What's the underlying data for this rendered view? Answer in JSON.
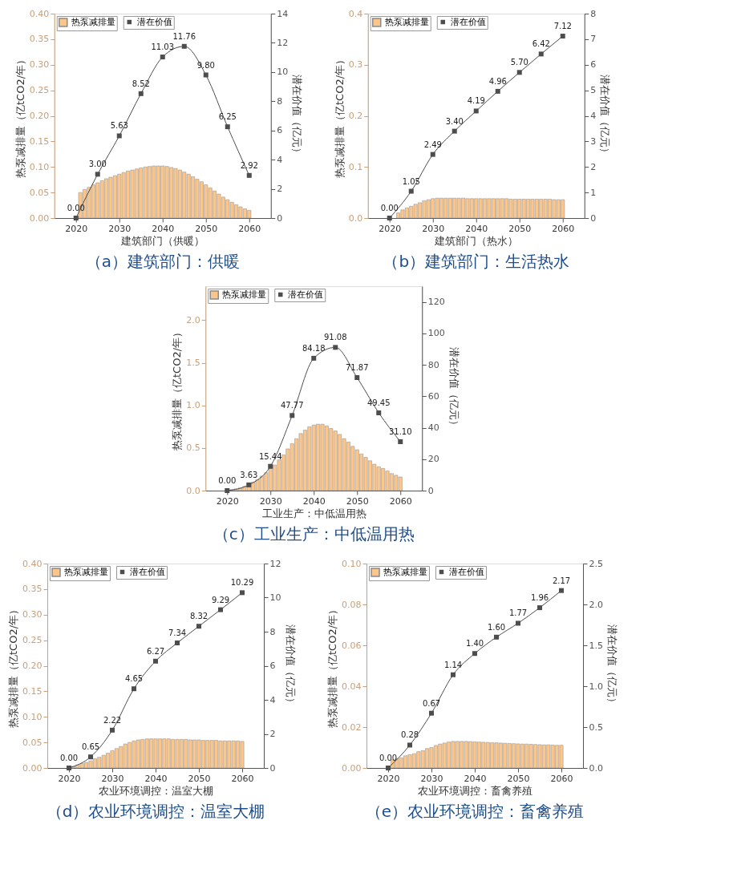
{
  "chart_data": [
    {
      "type": "bar",
      "title": "（a）建筑部门：供暖",
      "xlabel": "建筑部门（供暖）",
      "ylabel": "热泵减排量（亿tCO2/年）",
      "y2label": "潜在价值（亿元）",
      "legend": "top left",
      "xlim": [
        2015,
        2065
      ],
      "xticks": [
        2020,
        2030,
        2040,
        2050,
        2060
      ],
      "ylim": [
        0,
        0.4
      ],
      "yticks": [
        {
          "value": 0,
          "label": "0.00"
        },
        {
          "value": 0.05,
          "label": "0.05"
        },
        {
          "value": 0.1,
          "label": "0.10"
        },
        {
          "value": 0.15,
          "label": "0.15"
        },
        {
          "value": 0.2,
          "label": "0.20"
        },
        {
          "value": 0.25,
          "label": "0.25"
        },
        {
          "value": 0.3,
          "label": "0.30"
        },
        {
          "value": 0.35,
          "label": "0.35"
        },
        {
          "value": 0.4,
          "label": "0.40"
        }
      ],
      "y2lim": [
        0,
        14
      ],
      "y2ticks": [
        0,
        2,
        4,
        6,
        8,
        10,
        12,
        14
      ],
      "series": [
        {
          "name": "热泵减排量",
          "type": "bar",
          "color": "#fcc68a",
          "x": [
            2021,
            2022,
            2023,
            2024,
            2025,
            2026,
            2027,
            2028,
            2029,
            2030,
            2031,
            2032,
            2033,
            2034,
            2035,
            2036,
            2037,
            2038,
            2039,
            2040,
            2041,
            2042,
            2043,
            2044,
            2045,
            2046,
            2047,
            2048,
            2049,
            2050,
            2051,
            2052,
            2053,
            2054,
            2055,
            2056,
            2057,
            2058,
            2059,
            2060
          ],
          "values": [
            0.05,
            0.056,
            0.06,
            0.065,
            0.069,
            0.073,
            0.077,
            0.08,
            0.083,
            0.086,
            0.089,
            0.092,
            0.094,
            0.096,
            0.098,
            0.1,
            0.101,
            0.102,
            0.102,
            0.102,
            0.101,
            0.099,
            0.097,
            0.094,
            0.09,
            0.086,
            0.081,
            0.076,
            0.071,
            0.065,
            0.059,
            0.053,
            0.047,
            0.041,
            0.036,
            0.031,
            0.026,
            0.022,
            0.018,
            0.015
          ]
        },
        {
          "name": "潜在价值",
          "type": "line",
          "axis": "y2",
          "marker": "square",
          "color": "#4d4d4d",
          "x": [
            2020,
            2025,
            2030,
            2035,
            2040,
            2045,
            2050,
            2055,
            2060
          ],
          "values": [
            0,
            3.0,
            5.63,
            8.52,
            11.03,
            11.76,
            9.8,
            6.25,
            2.92
          ],
          "value_labels": [
            "0.00",
            "3.00",
            "5.63",
            "8.52",
            "11.03",
            "11.76",
            "9.80",
            "6.25",
            "2.92"
          ]
        }
      ]
    },
    {
      "type": "bar",
      "title": "（b）建筑部门：生活热水",
      "xlabel": "建筑部门（热水）",
      "ylabel": "热泵减排量（亿tCO2/年）",
      "y2label": "潜在价值（亿元）",
      "legend": "top left",
      "xlim": [
        2015,
        2065
      ],
      "xticks": [
        2020,
        2030,
        2040,
        2050,
        2060
      ],
      "ylim": [
        0,
        0.4
      ],
      "yticks": [
        {
          "value": 0,
          "label": "0.0"
        },
        {
          "value": 0.1,
          "label": "0.1"
        },
        {
          "value": 0.2,
          "label": "0.2"
        },
        {
          "value": 0.3,
          "label": "0.3"
        },
        {
          "value": 0.4,
          "label": "0.4"
        }
      ],
      "y2lim": [
        0,
        8
      ],
      "y2ticks": [
        0,
        1,
        2,
        3,
        4,
        5,
        6,
        7,
        8
      ],
      "series": [
        {
          "name": "热泵减排量",
          "type": "bar",
          "color": "#fcc68a",
          "x": [
            2022,
            2023,
            2024,
            2025,
            2026,
            2027,
            2028,
            2029,
            2030,
            2031,
            2032,
            2033,
            2034,
            2035,
            2036,
            2037,
            2038,
            2039,
            2040,
            2041,
            2042,
            2043,
            2044,
            2045,
            2046,
            2047,
            2048,
            2049,
            2050,
            2051,
            2052,
            2053,
            2054,
            2055,
            2056,
            2057,
            2058,
            2059,
            2060
          ],
          "values": [
            0.01,
            0.016,
            0.02,
            0.023,
            0.027,
            0.03,
            0.034,
            0.036,
            0.038,
            0.039,
            0.039,
            0.039,
            0.039,
            0.039,
            0.039,
            0.039,
            0.038,
            0.038,
            0.038,
            0.038,
            0.038,
            0.038,
            0.038,
            0.038,
            0.038,
            0.038,
            0.037,
            0.037,
            0.037,
            0.037,
            0.037,
            0.037,
            0.037,
            0.037,
            0.037,
            0.037,
            0.036,
            0.036,
            0.036
          ]
        },
        {
          "name": "潜在价值",
          "type": "line",
          "axis": "y2",
          "marker": "square",
          "color": "#4d4d4d",
          "x": [
            2020,
            2025,
            2030,
            2035,
            2040,
            2045,
            2050,
            2055,
            2060
          ],
          "values": [
            0,
            1.05,
            2.49,
            3.4,
            4.19,
            4.96,
            5.7,
            6.42,
            7.12
          ],
          "value_labels": [
            "0.00",
            "1.05",
            "2.49",
            "3.40",
            "4.19",
            "4.96",
            "5.70",
            "6.42",
            "7.12"
          ]
        }
      ]
    },
    {
      "type": "bar",
      "title": "（c）工业生产：中低温用热",
      "xlabel": "工业生产：中低温用热",
      "ylabel": "热泵减排量（亿tCO2/年）",
      "y2label": "潜在价值（亿元）",
      "legend": "top left",
      "xlim": [
        2015,
        2065
      ],
      "xticks": [
        2020,
        2030,
        2040,
        2050,
        2060
      ],
      "ylim": [
        0,
        2.4
      ],
      "yticks": [
        {
          "value": 0,
          "label": "0.0"
        },
        {
          "value": 0.5,
          "label": "0.5"
        },
        {
          "value": 1,
          "label": "1.0"
        },
        {
          "value": 1.5,
          "label": "1.5"
        },
        {
          "value": 2,
          "label": "2.0"
        }
      ],
      "y2lim": [
        0,
        130
      ],
      "y2ticks": [
        0,
        20,
        40,
        60,
        80,
        100,
        120
      ],
      "series": [
        {
          "name": "热泵减排量",
          "type": "bar",
          "color": "#fcc68a",
          "x": [
            2021,
            2022,
            2023,
            2024,
            2025,
            2026,
            2027,
            2028,
            2029,
            2030,
            2031,
            2032,
            2033,
            2034,
            2035,
            2036,
            2037,
            2038,
            2039,
            2040,
            2041,
            2042,
            2043,
            2044,
            2045,
            2046,
            2047,
            2048,
            2049,
            2050,
            2051,
            2052,
            2053,
            2054,
            2055,
            2056,
            2057,
            2058,
            2059,
            2060
          ],
          "values": [
            0.01,
            0.02,
            0.03,
            0.05,
            0.07,
            0.1,
            0.13,
            0.17,
            0.21,
            0.26,
            0.3,
            0.36,
            0.42,
            0.49,
            0.55,
            0.61,
            0.67,
            0.71,
            0.75,
            0.77,
            0.78,
            0.78,
            0.76,
            0.73,
            0.7,
            0.66,
            0.61,
            0.57,
            0.52,
            0.48,
            0.43,
            0.39,
            0.35,
            0.31,
            0.28,
            0.26,
            0.23,
            0.2,
            0.18,
            0.16
          ]
        },
        {
          "name": "潜在价值",
          "type": "line",
          "axis": "y2",
          "marker": "square",
          "color": "#4d4d4d",
          "x": [
            2020,
            2025,
            2030,
            2035,
            2040,
            2045,
            2050,
            2055,
            2060
          ],
          "values": [
            0,
            3.63,
            15.44,
            47.77,
            84.18,
            91.08,
            71.87,
            49.45,
            31.1
          ],
          "value_labels": [
            "0.00",
            "3.63",
            "15.44",
            "47.77",
            "84.18",
            "91.08",
            "71.87",
            "49.45",
            "31.10"
          ]
        }
      ]
    },
    {
      "type": "bar",
      "title": "（d）农业环境调控：温室大棚",
      "xlabel": "农业环境调控：温室大棚",
      "ylabel": "热泵减排量（亿tCO2/年）",
      "y2label": "潜在价值（亿元）",
      "legend": "top left",
      "xlim": [
        2015,
        2065
      ],
      "xticks": [
        2020,
        2030,
        2040,
        2050,
        2060
      ],
      "ylim": [
        0,
        0.4
      ],
      "yticks": [
        {
          "value": 0,
          "label": "0.00"
        },
        {
          "value": 0.05,
          "label": "0.05"
        },
        {
          "value": 0.1,
          "label": "0.10"
        },
        {
          "value": 0.15,
          "label": "0.15"
        },
        {
          "value": 0.2,
          "label": "0.20"
        },
        {
          "value": 0.25,
          "label": "0.25"
        },
        {
          "value": 0.3,
          "label": "0.30"
        },
        {
          "value": 0.35,
          "label": "0.35"
        },
        {
          "value": 0.4,
          "label": "0.40"
        }
      ],
      "y2lim": [
        0,
        12
      ],
      "y2ticks": [
        0,
        2,
        4,
        6,
        8,
        10,
        12
      ],
      "series": [
        {
          "name": "热泵减排量",
          "type": "bar",
          "color": "#fcc68a",
          "x": [
            2021,
            2022,
            2023,
            2024,
            2025,
            2026,
            2027,
            2028,
            2029,
            2030,
            2031,
            2032,
            2033,
            2034,
            2035,
            2036,
            2037,
            2038,
            2039,
            2040,
            2041,
            2042,
            2043,
            2044,
            2045,
            2046,
            2047,
            2048,
            2049,
            2050,
            2051,
            2052,
            2053,
            2054,
            2055,
            2056,
            2057,
            2058,
            2059,
            2060
          ],
          "values": [
            0.003,
            0.006,
            0.009,
            0.011,
            0.014,
            0.018,
            0.021,
            0.025,
            0.029,
            0.034,
            0.038,
            0.042,
            0.047,
            0.05,
            0.053,
            0.055,
            0.056,
            0.057,
            0.057,
            0.057,
            0.057,
            0.057,
            0.057,
            0.056,
            0.056,
            0.056,
            0.056,
            0.055,
            0.055,
            0.055,
            0.054,
            0.054,
            0.054,
            0.054,
            0.053,
            0.053,
            0.053,
            0.053,
            0.053,
            0.052
          ]
        },
        {
          "name": "潜在价值",
          "type": "line",
          "axis": "y2",
          "marker": "square",
          "color": "#4d4d4d",
          "x": [
            2020,
            2025,
            2030,
            2035,
            2040,
            2045,
            2050,
            2055,
            2060
          ],
          "values": [
            0,
            0.65,
            2.22,
            4.65,
            6.27,
            7.34,
            8.32,
            9.29,
            10.29
          ],
          "value_labels": [
            "0.00",
            "0.65",
            "2.22",
            "4.65",
            "6.27",
            "7.34",
            "8.32",
            "9.29",
            "10.29"
          ]
        }
      ]
    },
    {
      "type": "bar",
      "title": "（e）农业环境调控：畜禽养殖",
      "xlabel": "农业环境调控：畜禽养殖",
      "ylabel": "热泵减排量（亿tCO2/年）",
      "y2label": "潜在价值（亿元）",
      "legend": "top left",
      "xlim": [
        2015,
        2065
      ],
      "xticks": [
        2020,
        2030,
        2040,
        2050,
        2060
      ],
      "ylim": [
        0,
        0.1
      ],
      "yticks": [
        {
          "value": 0,
          "label": "0.00"
        },
        {
          "value": 0.02,
          "label": "0.02"
        },
        {
          "value": 0.04,
          "label": "0.04"
        },
        {
          "value": 0.06,
          "label": "0.06"
        },
        {
          "value": 0.08,
          "label": "0.08"
        },
        {
          "value": 0.1,
          "label": "0.10"
        }
      ],
      "y2lim": [
        0,
        2.5
      ],
      "y2ticks": [
        {
          "value": 0,
          "label": "0.0"
        },
        {
          "value": 0.5,
          "label": "0.5"
        },
        {
          "value": 1,
          "label": "1.0"
        },
        {
          "value": 1.5,
          "label": "1.5"
        },
        {
          "value": 2,
          "label": "2.0"
        },
        {
          "value": 2.5,
          "label": "2.5"
        }
      ],
      "series": [
        {
          "name": "热泵减排量",
          "type": "bar",
          "color": "#fcc68a",
          "x": [
            2021,
            2022,
            2023,
            2024,
            2025,
            2026,
            2027,
            2028,
            2029,
            2030,
            2031,
            2032,
            2033,
            2034,
            2035,
            2036,
            2037,
            2038,
            2039,
            2040,
            2041,
            2042,
            2043,
            2044,
            2045,
            2046,
            2047,
            2048,
            2049,
            2050,
            2051,
            2052,
            2053,
            2054,
            2055,
            2056,
            2057,
            2058,
            2059,
            2060
          ],
          "values": [
            0.004,
            0.0045,
            0.005,
            0.006,
            0.0065,
            0.007,
            0.008,
            0.0085,
            0.0095,
            0.01,
            0.011,
            0.0117,
            0.0122,
            0.0127,
            0.013,
            0.013,
            0.013,
            0.013,
            0.0129,
            0.0128,
            0.0127,
            0.0126,
            0.0125,
            0.0124,
            0.0123,
            0.0122,
            0.0121,
            0.012,
            0.0119,
            0.0118,
            0.0117,
            0.0117,
            0.0116,
            0.0115,
            0.0114,
            0.0113,
            0.0113,
            0.0112,
            0.0111,
            0.0111
          ]
        },
        {
          "name": "潜在价值",
          "type": "line",
          "axis": "y2",
          "marker": "square",
          "color": "#4d4d4d",
          "x": [
            2020,
            2025,
            2030,
            2035,
            2040,
            2045,
            2050,
            2055,
            2060
          ],
          "values": [
            0,
            0.28,
            0.67,
            1.14,
            1.4,
            1.6,
            1.77,
            1.96,
            2.17
          ],
          "value_labels": [
            "0.00",
            "0.28",
            "0.67",
            "1.14",
            "1.40",
            "1.60",
            "1.77",
            "1.96",
            "2.17"
          ]
        }
      ]
    }
  ]
}
